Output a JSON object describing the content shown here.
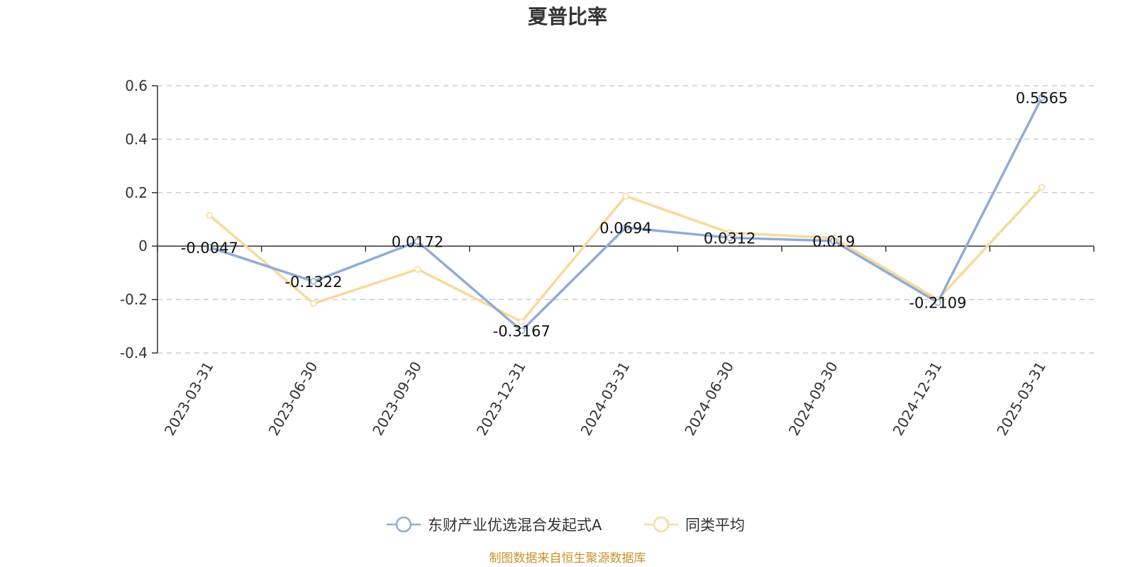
{
  "chart_data": {
    "type": "line",
    "title": "夏普比率",
    "categories": [
      "2023-03-31",
      "2023-06-30",
      "2023-09-30",
      "2023-12-31",
      "2024-03-31",
      "2024-06-30",
      "2024-09-30",
      "2024-12-31",
      "2025-03-31"
    ],
    "series": [
      {
        "name": "东财产业优选混合发起式A",
        "color": "#8eacd8",
        "values": [
          -0.0047,
          -0.1322,
          0.0172,
          -0.3167,
          0.0694,
          0.0312,
          0.019,
          -0.2109,
          0.5565
        ],
        "labels": [
          "-0.0047",
          "-0.1322",
          "0.0172",
          "-0.3167",
          "0.0694",
          "0.0312",
          "0.019",
          "-0.2109",
          "0.5565"
        ]
      },
      {
        "name": "同类平均",
        "color": "#f9d99a",
        "values": [
          0.115,
          -0.215,
          -0.087,
          -0.283,
          0.187,
          0.05,
          0.03,
          -0.2,
          0.22
        ]
      }
    ],
    "yticks": [
      "0.6",
      "0.4",
      "0.2",
      "0",
      "-0.2",
      "-0.4"
    ],
    "ylim": [
      -0.4,
      0.6
    ],
    "grid": true,
    "legend_position": "bottom-center"
  },
  "source": "制图数据来自恒生聚源数据库"
}
